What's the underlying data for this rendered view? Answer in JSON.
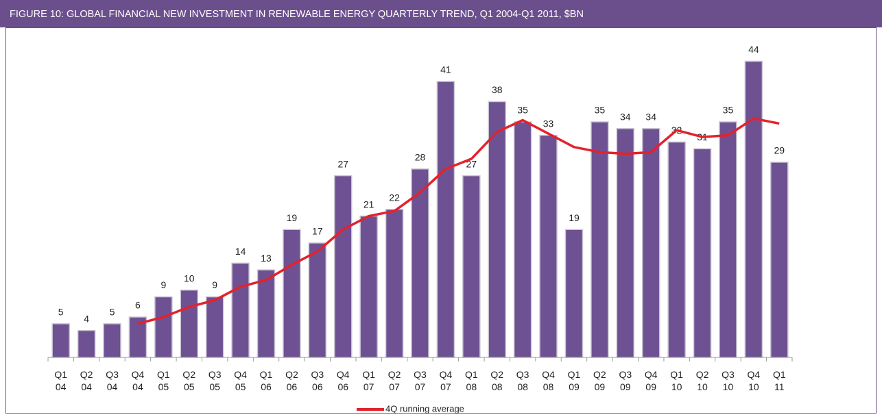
{
  "chart_data": {
    "type": "bar",
    "title": "FIGURE 10: GLOBAL FINANCIAL NEW INVESTMENT IN RENEWABLE ENERGY QUARTERLY TREND, Q1 2004-Q1 2011, $BN",
    "categories": [
      "Q1 04",
      "Q2 04",
      "Q3 04",
      "Q4 04",
      "Q1 05",
      "Q2 05",
      "Q3 05",
      "Q4 05",
      "Q1 06",
      "Q2 06",
      "Q3 06",
      "Q4 06",
      "Q1 07",
      "Q2 07",
      "Q3 07",
      "Q4 07",
      "Q1 08",
      "Q2 08",
      "Q3 08",
      "Q4 08",
      "Q1 09",
      "Q2 09",
      "Q3 09",
      "Q4 09",
      "Q1 10",
      "Q2 10",
      "Q3 10",
      "Q4 10",
      "Q1 11"
    ],
    "values": [
      5,
      4,
      5,
      6,
      9,
      10,
      9,
      14,
      13,
      19,
      17,
      27,
      21,
      22,
      28,
      41,
      27,
      38,
      35,
      33,
      19,
      35,
      34,
      34,
      32,
      31,
      35,
      44,
      29
    ],
    "color": "#6e5193",
    "line": {
      "name": "4Q running average",
      "color": "#e3222c",
      "values": [
        null,
        null,
        null,
        5,
        6,
        7.5,
        8.5,
        10.5,
        11.5,
        13.75,
        15.75,
        19,
        21,
        21.75,
        24.5,
        28,
        29.5,
        33.5,
        35.25,
        33.25,
        31.25,
        30.5,
        30.25,
        30.5,
        33.75,
        32.75,
        33,
        35.5,
        34.75
      ]
    },
    "ylim": [
      0,
      47
    ],
    "grid": false,
    "legend": "bottom"
  }
}
